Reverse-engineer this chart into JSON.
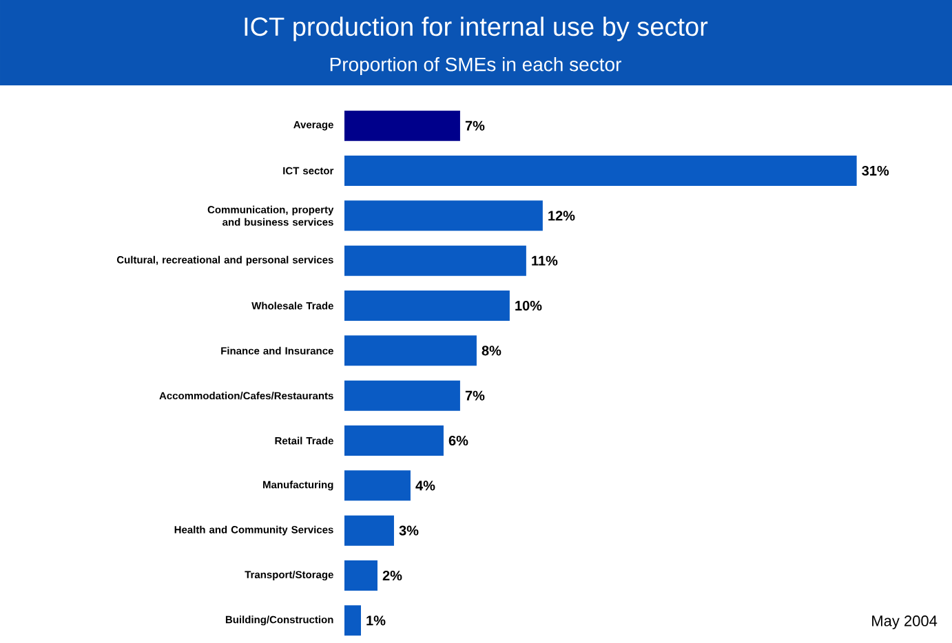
{
  "chart_data": {
    "type": "bar",
    "orientation": "horizontal",
    "title": "ICT production for internal use by sector",
    "subtitle": "Proportion of SMEs in each sector",
    "categories": [
      "Average",
      "ICT sector",
      "Communication, property and business services",
      "Cultural, recreational and personal services",
      "Wholesale Trade",
      "Finance and Insurance",
      "Accommodation/Cafes/Restaurants",
      "Retail Trade",
      "Manufacturing",
      "Health and Community Services",
      "Transport/Storage",
      "Building/Construction"
    ],
    "values": [
      7,
      31,
      12,
      11,
      10,
      8,
      7,
      6,
      4,
      3,
      2,
      1
    ],
    "value_labels": [
      "7%",
      "31%",
      "12%",
      "11%",
      "10%",
      "8%",
      "7%",
      "6%",
      "4%",
      "3%",
      "2%",
      "1%"
    ],
    "colors": [
      "#00008b",
      "#0a5bc4",
      "#0a5bc4",
      "#0a5bc4",
      "#0a5bc4",
      "#0a5bc4",
      "#0a5bc4",
      "#0a5bc4",
      "#0a5bc4",
      "#0a5bc4",
      "#0a5bc4",
      "#0a5bc4"
    ],
    "annotations": [
      "May 2004"
    ]
  }
}
